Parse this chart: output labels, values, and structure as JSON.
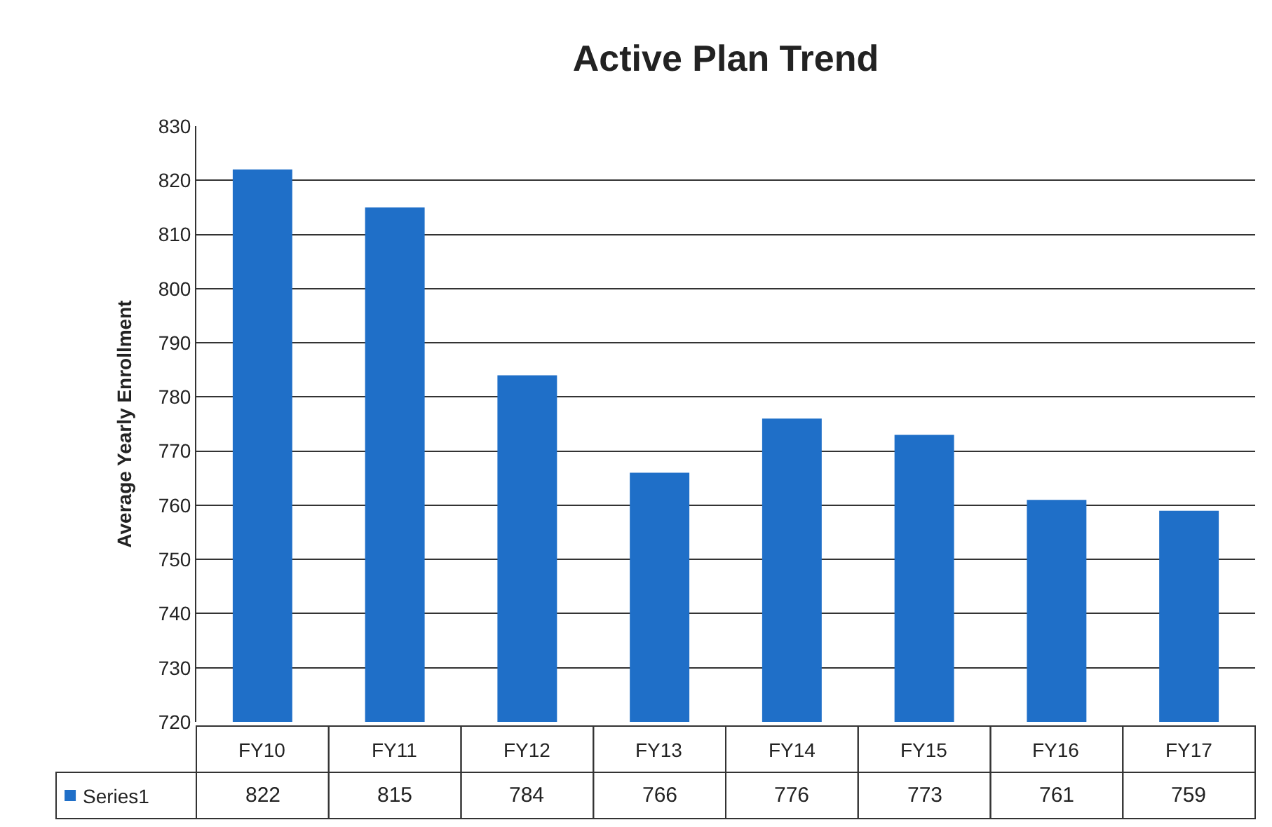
{
  "chart_data": {
    "type": "bar",
    "title": "Active Plan Trend",
    "ylabel": "Average Yearly Enrollment",
    "categories": [
      "FY10",
      "FY11",
      "FY12",
      "FY13",
      "FY14",
      "FY15",
      "FY16",
      "FY17"
    ],
    "series": [
      {
        "name": "Series1",
        "color": "#1f6fc8",
        "values": [
          822,
          815,
          784,
          766,
          776,
          773,
          761,
          759
        ]
      }
    ],
    "ylim": [
      720,
      830
    ],
    "yticks": [
      720,
      730,
      740,
      750,
      760,
      770,
      780,
      790,
      800,
      810,
      820,
      830
    ],
    "grid": "y",
    "data_labels": true
  }
}
